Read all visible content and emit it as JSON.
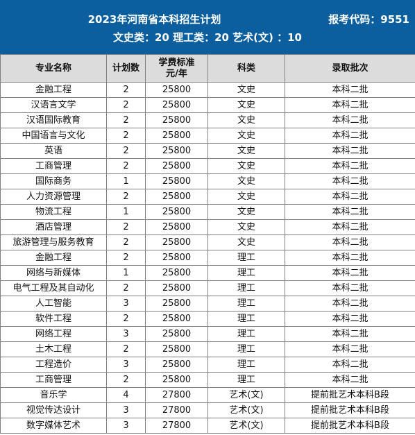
{
  "header": {
    "title": "2023年河南省本科招生计划",
    "code": "报考代码：9551",
    "quota": "文史类：20    理工类：20    艺术(文) ：10"
  },
  "table": {
    "columns": [
      "专业名称",
      "计划数",
      "学费标准元/年",
      "科类",
      "录取批次"
    ],
    "fee_header_line1": "学费标准",
    "fee_header_line2": "元/年",
    "rows": [
      {
        "major": "金融工程",
        "count": "2",
        "fee": "25800",
        "category": "文史",
        "batch": "本科二批"
      },
      {
        "major": "汉语言文学",
        "count": "2",
        "fee": "25800",
        "category": "文史",
        "batch": "本科二批"
      },
      {
        "major": "汉语国际教育",
        "count": "2",
        "fee": "25800",
        "category": "文史",
        "batch": "本科二批"
      },
      {
        "major": "中国语言与文化",
        "count": "2",
        "fee": "25800",
        "category": "文史",
        "batch": "本科二批"
      },
      {
        "major": "英语",
        "count": "2",
        "fee": "25800",
        "category": "文史",
        "batch": "本科二批"
      },
      {
        "major": "工商管理",
        "count": "2",
        "fee": "25800",
        "category": "文史",
        "batch": "本科二批"
      },
      {
        "major": "国际商务",
        "count": "1",
        "fee": "25800",
        "category": "文史",
        "batch": "本科二批"
      },
      {
        "major": "人力资源管理",
        "count": "2",
        "fee": "25800",
        "category": "文史",
        "batch": "本科二批"
      },
      {
        "major": "物流工程",
        "count": "1",
        "fee": "25800",
        "category": "文史",
        "batch": "本科二批"
      },
      {
        "major": "酒店管理",
        "count": "2",
        "fee": "25800",
        "category": "文史",
        "batch": "本科二批"
      },
      {
        "major": "旅游管理与服务教育",
        "count": "2",
        "fee": "25800",
        "category": "文史",
        "batch": "本科二批"
      },
      {
        "major": "金融工程",
        "count": "2",
        "fee": "25800",
        "category": "理工",
        "batch": "本科二批"
      },
      {
        "major": "网络与新媒体",
        "count": "1",
        "fee": "25800",
        "category": "理工",
        "batch": "本科二批"
      },
      {
        "major": "电气工程及其自动化",
        "count": "2",
        "fee": "25800",
        "category": "理工",
        "batch": "本科二批"
      },
      {
        "major": "人工智能",
        "count": "3",
        "fee": "25800",
        "category": "理工",
        "batch": "本科二批"
      },
      {
        "major": "软件工程",
        "count": "2",
        "fee": "25800",
        "category": "理工",
        "batch": "本科二批"
      },
      {
        "major": "网络工程",
        "count": "3",
        "fee": "25800",
        "category": "理工",
        "batch": "本科二批"
      },
      {
        "major": "土木工程",
        "count": "2",
        "fee": "25800",
        "category": "理工",
        "batch": "本科二批"
      },
      {
        "major": "工程造价",
        "count": "3",
        "fee": "25800",
        "category": "理工",
        "batch": "本科二批"
      },
      {
        "major": "工商管理",
        "count": "2",
        "fee": "25800",
        "category": "理工",
        "batch": "本科二批"
      },
      {
        "major": "音乐学",
        "count": "4",
        "fee": "27800",
        "category": "艺术(文)",
        "batch": "提前批艺术本科B段"
      },
      {
        "major": "视觉传达设计",
        "count": "3",
        "fee": "27800",
        "category": "艺术(文)",
        "batch": "提前批艺术本科B段"
      },
      {
        "major": "数字媒体艺术",
        "count": "3",
        "fee": "27800",
        "category": "艺术(文)",
        "batch": "提前批艺术本科B段"
      }
    ]
  },
  "colors": {
    "header_bg": "#0b5f9e",
    "header_text": "#ffffff",
    "column_header_bg": "#dcdcdc",
    "grid": "#7f7f7f"
  }
}
